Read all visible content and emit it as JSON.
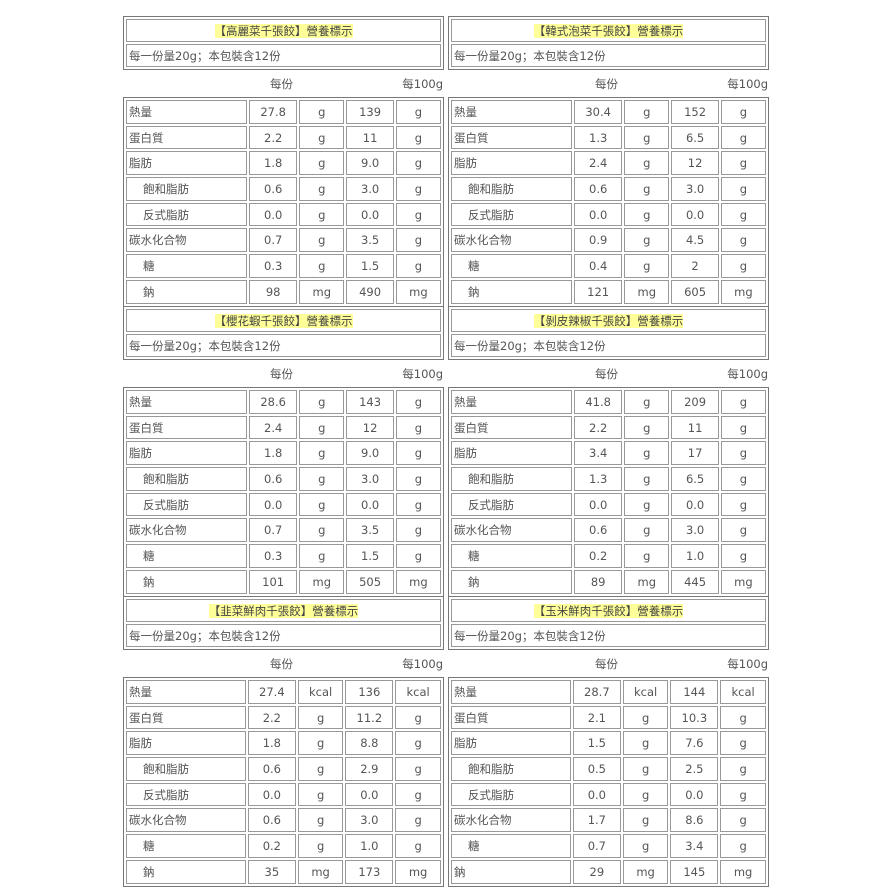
{
  "accent_highlight": "#ffff99",
  "header_per_serving": "每份",
  "header_per_100g": "每100g",
  "labels": [
    "熱量",
    "蛋白質",
    "脂肪",
    "飽和脂肪",
    "反式脂肪",
    "碳水化合物",
    "糖",
    "鈉"
  ],
  "products": [
    {
      "title": "【高麗菜千張餃】營養標示",
      "serving": "每一份量20g；本包裝含12份",
      "rows": [
        [
          "27.8",
          "g",
          "139",
          "g"
        ],
        [
          "2.2",
          "g",
          "11",
          "g"
        ],
        [
          "1.8",
          "g",
          "9.0",
          "g"
        ],
        [
          "0.6",
          "g",
          "3.0",
          "g"
        ],
        [
          "0.0",
          "g",
          "0.0",
          "g"
        ],
        [
          "0.7",
          "g",
          "3.5",
          "g"
        ],
        [
          "0.3",
          "g",
          "1.5",
          "g"
        ],
        [
          "98",
          "mg",
          "490",
          "mg"
        ]
      ],
      "sodium_indented": true
    },
    {
      "title": "【韓式泡菜千張餃】營養標示",
      "serving": "每一份量20g；本包裝含12份",
      "rows": [
        [
          "30.4",
          "g",
          "152",
          "g"
        ],
        [
          "1.3",
          "g",
          "6.5",
          "g"
        ],
        [
          "2.4",
          "g",
          "12",
          "g"
        ],
        [
          "0.6",
          "g",
          "3.0",
          "g"
        ],
        [
          "0.0",
          "g",
          "0.0",
          "g"
        ],
        [
          "0.9",
          "g",
          "4.5",
          "g"
        ],
        [
          "0.4",
          "g",
          "2",
          "g"
        ],
        [
          "121",
          "mg",
          "605",
          "mg"
        ]
      ],
      "sodium_indented": true
    },
    {
      "title": "【櫻花蝦千張餃】營養標示",
      "serving": "每一份量20g；本包裝含12份",
      "rows": [
        [
          "28.6",
          "g",
          "143",
          "g"
        ],
        [
          "2.4",
          "g",
          "12",
          "g"
        ],
        [
          "1.8",
          "g",
          "9.0",
          "g"
        ],
        [
          "0.6",
          "g",
          "3.0",
          "g"
        ],
        [
          "0.0",
          "g",
          "0.0",
          "g"
        ],
        [
          "0.7",
          "g",
          "3.5",
          "g"
        ],
        [
          "0.3",
          "g",
          "1.5",
          "g"
        ],
        [
          "101",
          "mg",
          "505",
          "mg"
        ]
      ],
      "sodium_indented": true
    },
    {
      "title": "【剝皮辣椒千張餃】營養標示",
      "serving": "每一份量20g；本包裝含12份",
      "rows": [
        [
          "41.8",
          "g",
          "209",
          "g"
        ],
        [
          "2.2",
          "g",
          "11",
          "g"
        ],
        [
          "3.4",
          "g",
          "17",
          "g"
        ],
        [
          "1.3",
          "g",
          "6.5",
          "g"
        ],
        [
          "0.0",
          "g",
          "0.0",
          "g"
        ],
        [
          "0.6",
          "g",
          "3.0",
          "g"
        ],
        [
          "0.2",
          "g",
          "1.0",
          "g"
        ],
        [
          "89",
          "mg",
          "445",
          "mg"
        ]
      ],
      "sodium_indented": true
    },
    {
      "title": "【韭菜鮮肉千張餃】營養標示",
      "serving": "每一份量20g；本包裝含12份",
      "rows": [
        [
          "27.4",
          "kcal",
          "136",
          "kcal"
        ],
        [
          "2.2",
          "g",
          "11.2",
          "g"
        ],
        [
          "1.8",
          "g",
          "8.8",
          "g"
        ],
        [
          "0.6",
          "g",
          "2.9",
          "g"
        ],
        [
          "0.0",
          "g",
          "0.0",
          "g"
        ],
        [
          "0.6",
          "g",
          "3.0",
          "g"
        ],
        [
          "0.2",
          "g",
          "1.0",
          "g"
        ],
        [
          "35",
          "mg",
          "173",
          "mg"
        ]
      ],
      "sodium_indented": true
    },
    {
      "title": "【玉米鮮肉千張餃】營養標示",
      "serving": "每一份量20g；本包裝含12份",
      "rows": [
        [
          "28.7",
          "kcal",
          "144",
          "kcal"
        ],
        [
          "2.1",
          "g",
          "10.3",
          "g"
        ],
        [
          "1.5",
          "g",
          "7.6",
          "g"
        ],
        [
          "0.5",
          "g",
          "2.5",
          "g"
        ],
        [
          "0.0",
          "g",
          "0.0",
          "g"
        ],
        [
          "1.7",
          "g",
          "8.6",
          "g"
        ],
        [
          "0.7",
          "g",
          "3.4",
          "g"
        ],
        [
          "29",
          "mg",
          "145",
          "mg"
        ]
      ],
      "sodium_indented": false
    }
  ]
}
